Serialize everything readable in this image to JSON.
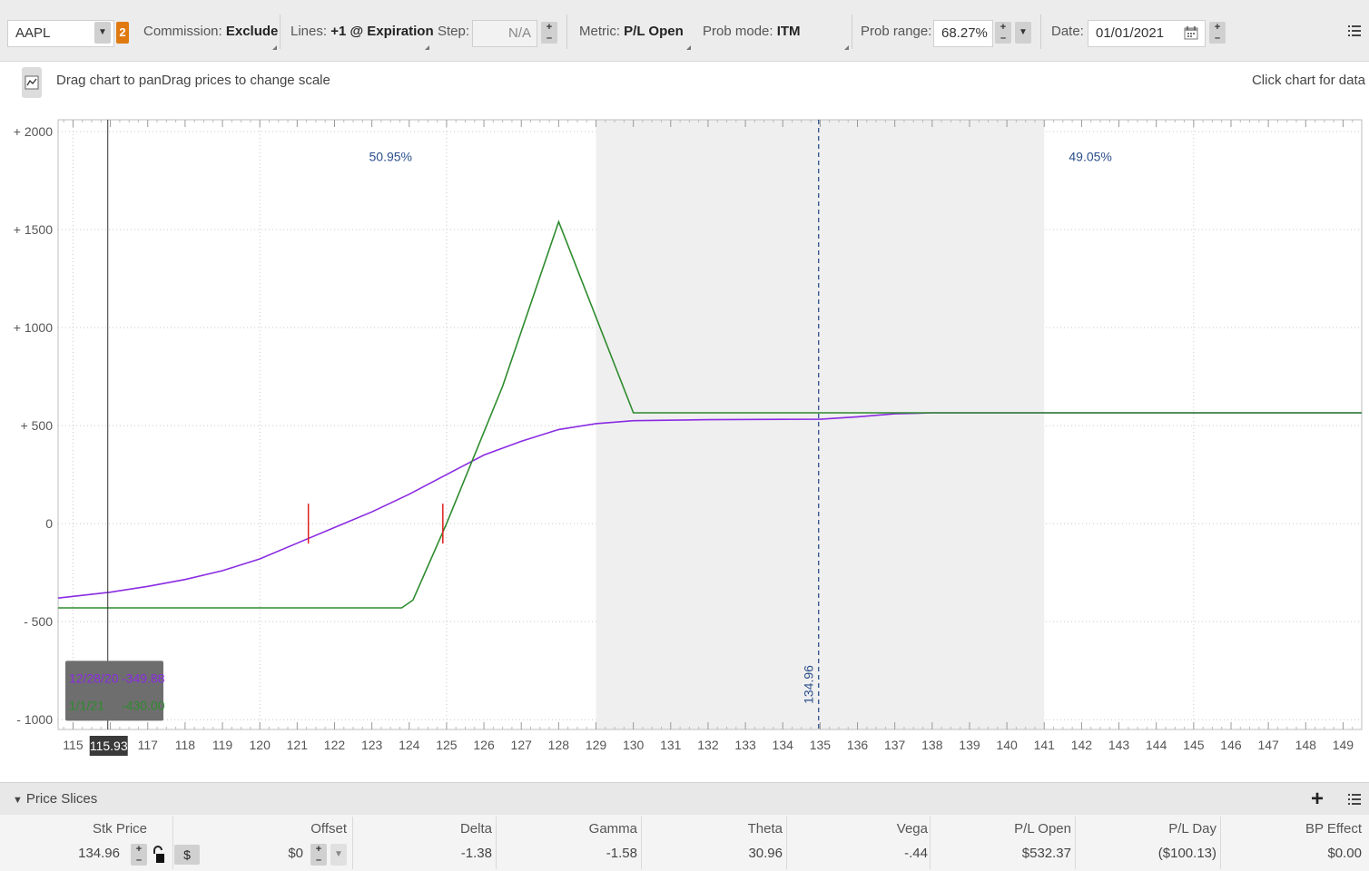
{
  "toolbar": {
    "symbol": "AAPL",
    "symbol_badge": "2",
    "commission_label": "Commission:",
    "commission_value": "Exclude",
    "lines_label": "Lines:",
    "lines_value": "+1 @ Expiration",
    "step_label": "Step:",
    "step_value": "N/A",
    "metric_label": "Metric:",
    "metric_value": "P/L Open",
    "probmode_label": "Prob mode:",
    "probmode_value": "ITM",
    "probrange_label": "Prob range:",
    "probrange_value": "68.27%",
    "date_label": "Date:",
    "date_value": "01/01/2021"
  },
  "hint": {
    "left": "Drag chart to panDrag prices to change scale",
    "right": "Click chart for data"
  },
  "chart_data": {
    "type": "line",
    "x_ticks": [
      "115",
      "116",
      "117",
      "118",
      "119",
      "120",
      "121",
      "122",
      "123",
      "124",
      "125",
      "126",
      "127",
      "128",
      "129",
      "130",
      "131",
      "132",
      "133",
      "134",
      "135",
      "136",
      "137",
      "138",
      "139",
      "140",
      "141",
      "142",
      "143",
      "144",
      "145",
      "146",
      "147",
      "148",
      "149"
    ],
    "y_ticks": [
      2000,
      1500,
      1000,
      500,
      0,
      -500,
      -1000
    ],
    "y_tick_labels": [
      "+ 2000",
      "+ 1500",
      "+ 1000",
      "+ 500",
      "0",
      "- 500",
      "- 1000"
    ],
    "xlim": [
      114.6,
      149.5
    ],
    "ylim": [
      -1050,
      2060
    ],
    "grid": true,
    "prob_band": {
      "from": 129,
      "to": 141
    },
    "prob_left_label": "50.95%",
    "prob_right_label": "49.05%",
    "current_price": 134.96,
    "current_price_label": "134.96",
    "cursor_price": 115.93,
    "cursor_price_label": "115.93",
    "breakevens": [
      121.3,
      124.9
    ],
    "series": [
      {
        "color": "#8a2be2",
        "points": [
          [
            114.6,
            -380
          ],
          [
            116,
            -349.88
          ],
          [
            117,
            -320
          ],
          [
            118,
            -285
          ],
          [
            119,
            -240
          ],
          [
            120,
            -180
          ],
          [
            121,
            -100
          ],
          [
            122,
            -20
          ],
          [
            123,
            60
          ],
          [
            124,
            150
          ],
          [
            125,
            250
          ],
          [
            126,
            350
          ],
          [
            127,
            420
          ],
          [
            128,
            480
          ],
          [
            129,
            510
          ],
          [
            130,
            525
          ],
          [
            132,
            530
          ],
          [
            134,
            532
          ],
          [
            135,
            532.37
          ],
          [
            136,
            545
          ],
          [
            137,
            560
          ],
          [
            138,
            565
          ],
          [
            149.5,
            565
          ]
        ]
      },
      {
        "color": "#2e8b2e",
        "points": [
          [
            114.6,
            -430
          ],
          [
            123.8,
            -430
          ],
          [
            124.1,
            -390
          ],
          [
            125,
            0
          ],
          [
            126.5,
            700
          ],
          [
            128,
            1540
          ],
          [
            130,
            565
          ],
          [
            149.5,
            565
          ]
        ]
      }
    ],
    "cursor_readout": [
      {
        "date": "12/28/20",
        "value": "-349.88",
        "color": "#8a2be2"
      },
      {
        "date": "1/1/21",
        "value": "-430.00",
        "color": "#2e8b2e"
      }
    ]
  },
  "slices": {
    "title": "Price Slices",
    "columns": [
      "Stk Price",
      "Offset",
      "Delta",
      "Gamma",
      "Theta",
      "Vega",
      "P/L Open",
      "P/L Day",
      "BP Effect"
    ],
    "row": {
      "stk_price": "134.96",
      "offset": "$0",
      "delta": "-1.38",
      "gamma": "-1.58",
      "theta": "30.96",
      "vega": "-.44",
      "pl_open": "$532.37",
      "pl_day": "($100.13)",
      "bp_effect": "$0.00"
    },
    "currency_symbol": "$"
  }
}
